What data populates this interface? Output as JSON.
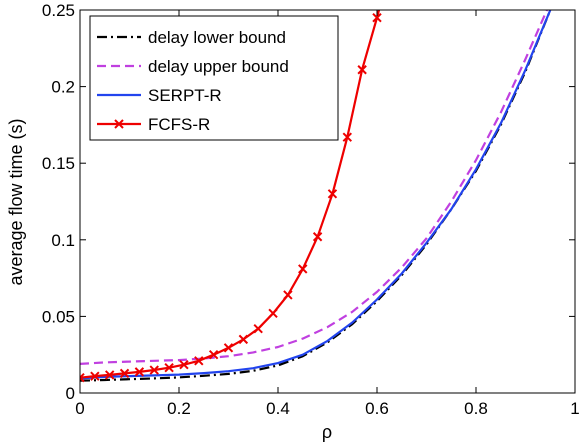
{
  "chart_data": {
    "type": "line",
    "title": "",
    "xlabel": "ρ",
    "ylabel": "average flow time (s)",
    "xlim": [
      0,
      1
    ],
    "ylim": [
      0,
      0.25
    ],
    "x_ticks": [
      "0",
      "0.2",
      "0.4",
      "0.6",
      "0.8",
      "1"
    ],
    "y_ticks": [
      "0",
      "0.05",
      "0.1",
      "0.15",
      "0.2",
      "0.25"
    ],
    "x_tick_values": [
      0,
      0.2,
      0.4,
      0.6,
      0.8,
      1
    ],
    "y_tick_values": [
      0,
      0.05,
      0.1,
      0.15,
      0.2,
      0.25
    ],
    "grid": false,
    "legend_position": "top-left",
    "series": [
      {
        "name": "delay lower bound",
        "color": "#000000",
        "style": "dashdot",
        "marker": "none",
        "x": [
          0,
          0.05,
          0.1,
          0.15,
          0.2,
          0.25,
          0.3,
          0.35,
          0.4,
          0.45,
          0.5,
          0.55,
          0.6,
          0.65,
          0.7,
          0.75,
          0.8,
          0.85,
          0.9,
          0.95
        ],
        "y": [
          0.008,
          0.0085,
          0.009,
          0.0095,
          0.0102,
          0.0112,
          0.0125,
          0.0145,
          0.018,
          0.024,
          0.033,
          0.045,
          0.06,
          0.077,
          0.097,
          0.12,
          0.145,
          0.175,
          0.21,
          0.25
        ]
      },
      {
        "name": "delay upper bound",
        "color": "#c040e0",
        "style": "dashed",
        "marker": "none",
        "x": [
          0,
          0.05,
          0.1,
          0.15,
          0.2,
          0.25,
          0.3,
          0.35,
          0.4,
          0.45,
          0.5,
          0.55,
          0.6,
          0.65,
          0.7,
          0.75,
          0.8,
          0.85,
          0.9,
          0.95
        ],
        "y": [
          0.019,
          0.02,
          0.0205,
          0.021,
          0.0215,
          0.0225,
          0.024,
          0.0265,
          0.03,
          0.0355,
          0.043,
          0.053,
          0.066,
          0.082,
          0.101,
          0.125,
          0.152,
          0.183,
          0.218,
          0.255
        ]
      },
      {
        "name": "SERPT-R",
        "color": "#2244ee",
        "style": "solid",
        "marker": "none",
        "x": [
          0,
          0.05,
          0.1,
          0.15,
          0.2,
          0.25,
          0.3,
          0.35,
          0.4,
          0.45,
          0.5,
          0.55,
          0.6,
          0.65,
          0.7,
          0.75,
          0.8,
          0.85,
          0.9,
          0.95
        ],
        "y": [
          0.0095,
          0.0105,
          0.011,
          0.0115,
          0.012,
          0.013,
          0.0142,
          0.0162,
          0.0195,
          0.025,
          0.034,
          0.046,
          0.061,
          0.078,
          0.098,
          0.12,
          0.146,
          0.176,
          0.211,
          0.25
        ]
      },
      {
        "name": "FCFS-R",
        "color": "#ee0000",
        "style": "solid",
        "marker": "x",
        "x": [
          0,
          0.03,
          0.06,
          0.09,
          0.12,
          0.15,
          0.18,
          0.21,
          0.24,
          0.27,
          0.3,
          0.33,
          0.36,
          0.39,
          0.42,
          0.45,
          0.48,
          0.51,
          0.54,
          0.57,
          0.6,
          0.62
        ],
        "y": [
          0.01,
          0.011,
          0.0118,
          0.0128,
          0.0138,
          0.015,
          0.0165,
          0.0185,
          0.021,
          0.025,
          0.0295,
          0.035,
          0.042,
          0.052,
          0.064,
          0.081,
          0.102,
          0.13,
          0.167,
          0.211,
          0.245,
          0.27
        ]
      }
    ]
  }
}
